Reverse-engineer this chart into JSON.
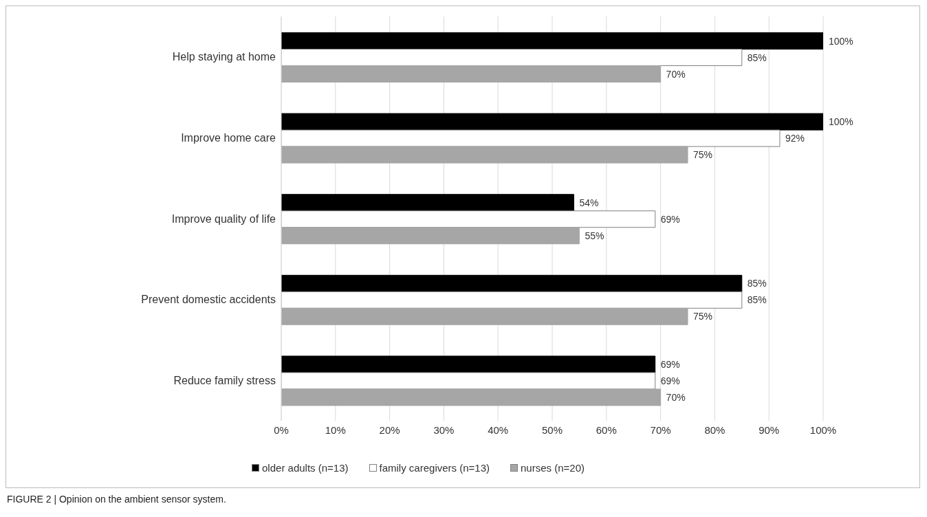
{
  "chart_data": {
    "type": "bar",
    "orientation": "horizontal",
    "categories": [
      "Help staying at home",
      "Improve home care",
      "Improve quality of life",
      "Prevent domestic accidents",
      "Reduce family stress"
    ],
    "series": [
      {
        "name": "older adults (n=13)",
        "color": "#000000",
        "values": [
          100,
          100,
          54,
          85,
          69
        ],
        "value_labels": [
          "100%",
          "100%",
          "54%",
          "85%",
          "69%"
        ]
      },
      {
        "name": "family caregivers (n=13)",
        "color": "#ffffff",
        "values": [
          85,
          92,
          69,
          85,
          69
        ],
        "value_labels": [
          "85%",
          "92%",
          "69%",
          "85%",
          "69%"
        ]
      },
      {
        "name": "nurses (n=20)",
        "color": "#a6a6a6",
        "values": [
          70,
          75,
          55,
          75,
          70
        ],
        "value_labels": [
          "70%",
          "75%",
          "55%",
          "75%",
          "70%"
        ]
      }
    ],
    "xlim": [
      0,
      100
    ],
    "xticks": [
      {
        "value": 0,
        "label": "0%"
      },
      {
        "value": 10,
        "label": "10%"
      },
      {
        "value": 20,
        "label": "20%"
      },
      {
        "value": 30,
        "label": "30%"
      },
      {
        "value": 40,
        "label": "40%"
      },
      {
        "value": 50,
        "label": "50%"
      },
      {
        "value": 60,
        "label": "60%"
      },
      {
        "value": 70,
        "label": "70%"
      },
      {
        "value": 80,
        "label": "80%"
      },
      {
        "value": 90,
        "label": "90%"
      },
      {
        "value": 100,
        "label": "100%"
      }
    ],
    "grid": "x",
    "legend": "bottom",
    "annotations": [
      "FIGURE 2 | Opinion on the ambient sensor system."
    ]
  }
}
